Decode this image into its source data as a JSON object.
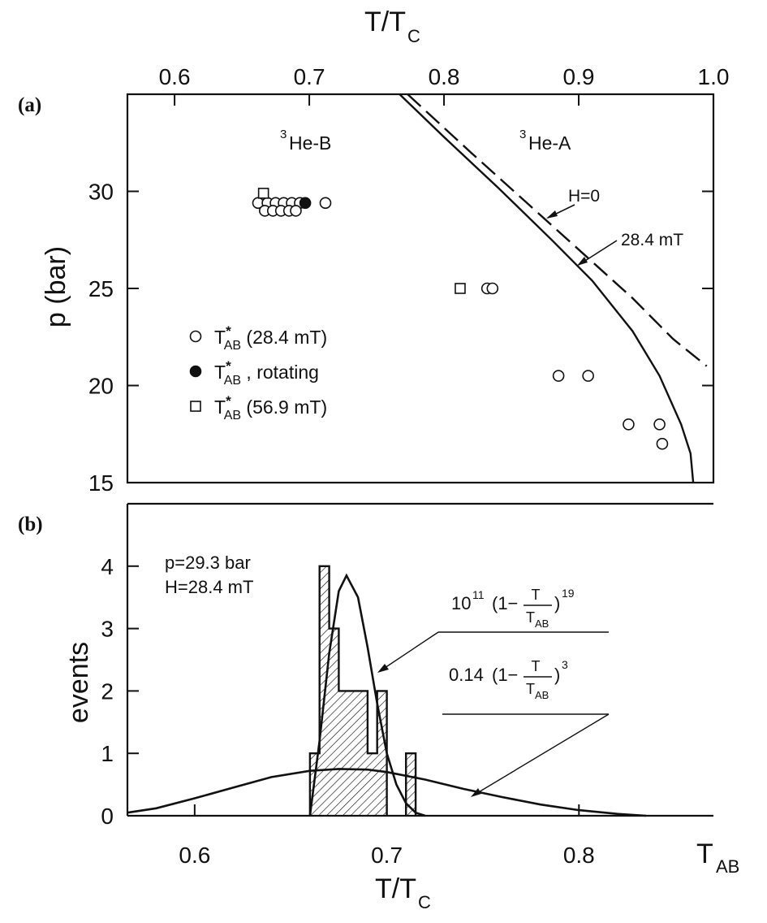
{
  "chart_data": [
    {
      "panel": "(a)",
      "type": "scatter",
      "top_axis_label": "T/T",
      "top_axis_label_sub": "C",
      "ylabel": "p (bar)",
      "xlim": [
        0.565,
        1.0
      ],
      "ylim": [
        15,
        35
      ],
      "x_ticks": [
        "0.6",
        "0.7",
        "0.8",
        "0.9",
        "1.0"
      ],
      "y_ticks": [
        "15",
        "20",
        "25",
        "30"
      ],
      "phase_labels": {
        "b": "He-B",
        "a": "He-A",
        "sup": "3"
      },
      "line_labels": {
        "h0": "H=0",
        "h284": "28.4 mT"
      },
      "legend": [
        {
          "marker": "circle-open",
          "label_main": "T",
          "label_sup": "*",
          "label_sub": "AB",
          "label_rest": "(28.4 mT)"
        },
        {
          "marker": "circle-filled",
          "label_main": "T",
          "label_sup": "*",
          "label_sub": "AB",
          "label_rest": ", rotating"
        },
        {
          "marker": "square-open",
          "label_main": "T",
          "label_sup": "*",
          "label_sub": "AB",
          "label_rest": "(56.9 mT)"
        }
      ],
      "series": [
        {
          "marker": "circle-open",
          "points": [
            [
              0.662,
              29.4
            ],
            [
              0.669,
              29.4
            ],
            [
              0.675,
              29.4
            ],
            [
              0.681,
              29.4
            ],
            [
              0.687,
              29.4
            ],
            [
              0.693,
              29.4
            ],
            [
              0.712,
              29.4
            ],
            [
              0.667,
              29.0
            ],
            [
              0.673,
              29.0
            ],
            [
              0.679,
              29.0
            ],
            [
              0.685,
              29.0
            ],
            [
              0.69,
              29.0
            ],
            [
              0.832,
              25.0
            ],
            [
              0.836,
              25.0
            ],
            [
              0.885,
              20.5
            ],
            [
              0.907,
              20.5
            ],
            [
              0.937,
              18.0
            ],
            [
              0.96,
              18.0
            ],
            [
              0.962,
              17.0
            ]
          ]
        },
        {
          "marker": "circle-filled",
          "points": [
            [
              0.697,
              29.4
            ]
          ]
        },
        {
          "marker": "square-open",
          "points": [
            [
              0.666,
              29.9
            ],
            [
              0.812,
              25.0
            ]
          ]
        }
      ],
      "lines": [
        {
          "style": "solid",
          "points": [
            [
              0.767,
              35.0
            ],
            [
              0.8,
              32.8
            ],
            [
              0.84,
              30.2
            ],
            [
              0.88,
              27.5
            ],
            [
              0.91,
              25.4
            ],
            [
              0.94,
              22.8
            ],
            [
              0.96,
              20.5
            ],
            [
              0.976,
              18.0
            ],
            [
              0.983,
              16.5
            ],
            [
              0.985,
              15.0
            ]
          ]
        },
        {
          "style": "dashed",
          "points": [
            [
              0.773,
              35.0
            ],
            [
              0.82,
              32.0
            ],
            [
              0.86,
              29.5
            ],
            [
              0.9,
              27.0
            ],
            [
              0.94,
              24.5
            ],
            [
              0.97,
              22.4
            ],
            [
              0.995,
              21.0
            ]
          ]
        }
      ]
    },
    {
      "panel": "(b)",
      "type": "histogram",
      "xlabel": "T/T",
      "xlabel_sub": "C",
      "ylabel": "events",
      "xlim": [
        0.565,
        0.87
      ],
      "ylim": [
        0,
        5
      ],
      "x_ticks": [
        "0.6",
        "0.7",
        "0.8"
      ],
      "x_end_label": "T",
      "x_end_label_sub": "AB",
      "y_ticks": [
        "0",
        "1",
        "2",
        "3",
        "4"
      ],
      "conditions": [
        "p=29.3 bar",
        "H=28.4 mT"
      ],
      "formulas": [
        {
          "coef": "10",
          "coef_sup": "11",
          "open": "(1−",
          "num": "T",
          "den": "T",
          "den_sub": "AB",
          "close": ")",
          "power": "19"
        },
        {
          "coef": "0.14",
          "coef_sup": "",
          "open": "(1−",
          "num": "T",
          "den": "T",
          "den_sub": "AB",
          "close": ")",
          "power": "3"
        }
      ],
      "bins": [
        {
          "x0": 0.66,
          "x1": 0.665,
          "count": 1
        },
        {
          "x0": 0.665,
          "x1": 0.67,
          "count": 4
        },
        {
          "x0": 0.67,
          "x1": 0.675,
          "count": 3
        },
        {
          "x0": 0.675,
          "x1": 0.69,
          "count": 2
        },
        {
          "x0": 0.69,
          "x1": 0.695,
          "count": 1
        },
        {
          "x0": 0.695,
          "x1": 0.7,
          "count": 2
        },
        {
          "x0": 0.71,
          "x1": 0.715,
          "count": 1
        }
      ],
      "curves": [
        {
          "name": "narrow",
          "points": [
            [
              0.66,
              0.0
            ],
            [
              0.665,
              1.2
            ],
            [
              0.67,
              2.6
            ],
            [
              0.675,
              3.6
            ],
            [
              0.679,
              3.85
            ],
            [
              0.685,
              3.5
            ],
            [
              0.69,
              2.7
            ],
            [
              0.695,
              1.8
            ],
            [
              0.7,
              1.0
            ],
            [
              0.705,
              0.5
            ],
            [
              0.71,
              0.2
            ],
            [
              0.715,
              0.05
            ],
            [
              0.72,
              0.0
            ]
          ]
        },
        {
          "name": "broad",
          "points": [
            [
              0.565,
              0.05
            ],
            [
              0.58,
              0.12
            ],
            [
              0.6,
              0.28
            ],
            [
              0.62,
              0.45
            ],
            [
              0.64,
              0.62
            ],
            [
              0.66,
              0.72
            ],
            [
              0.675,
              0.75
            ],
            [
              0.69,
              0.74
            ],
            [
              0.7,
              0.7
            ],
            [
              0.72,
              0.58
            ],
            [
              0.74,
              0.43
            ],
            [
              0.76,
              0.3
            ],
            [
              0.78,
              0.18
            ],
            [
              0.8,
              0.09
            ],
            [
              0.82,
              0.03
            ],
            [
              0.835,
              0.0
            ]
          ]
        }
      ]
    }
  ]
}
